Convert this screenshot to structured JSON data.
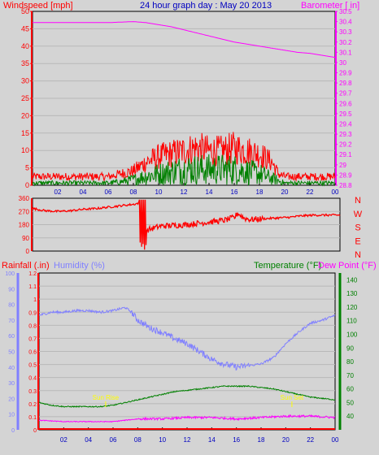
{
  "colors": {
    "background": "#d4d4d4",
    "plot_bg": "#d4d4d4",
    "frame": "#000000",
    "grid": "#b8b8b8",
    "wind": "#ff0000",
    "gust": "#ff0000",
    "avg_wind": "#008000",
    "barometer": "#ff00ff",
    "direction": "#ff0000",
    "rain": "#ff0000",
    "humidity": "#8080ff",
    "temperature": "#008000",
    "dewpoint": "#ff00ff",
    "title": "#0000c0",
    "sun_label": "#ffff00"
  },
  "header": {
    "title": "24 hour graph day : May 20 2013"
  },
  "chart_data": [
    {
      "type": "line",
      "id": "wind_baro",
      "ylabel_left": "Windspeed [mph]",
      "ylabel_right": "Barometer [ in]",
      "x_ticks": [
        "02",
        "04",
        "06",
        "08",
        "10",
        "12",
        "14",
        "16",
        "18",
        "20",
        "22",
        "00"
      ],
      "ylim_left": [
        0,
        50
      ],
      "yticks_left": [
        "0",
        "5",
        "10",
        "15",
        "20",
        "25",
        "30",
        "35",
        "40",
        "45",
        "50"
      ],
      "ylim_right": [
        28.8,
        30.5
      ],
      "yticks_right": [
        "28.8",
        "28.9",
        "29",
        "29.1",
        "29.2",
        "29.3",
        "29.4",
        "29.5",
        "29.6",
        "29.7",
        "29.8",
        "29.9",
        "30",
        "30.1",
        "30.2",
        "30.3",
        "30.4",
        "30.5"
      ],
      "series": [
        {
          "key": "barometer",
          "axis": "right",
          "x": [
            0,
            2,
            4,
            6,
            8,
            9,
            10,
            11,
            12,
            13,
            14,
            15,
            16,
            17,
            18,
            19,
            20,
            21,
            22,
            23,
            24
          ],
          "y": [
            30.39,
            30.39,
            30.39,
            30.39,
            30.4,
            30.39,
            30.37,
            30.35,
            30.32,
            30.29,
            30.26,
            30.23,
            30.2,
            30.18,
            30.16,
            30.14,
            30.12,
            30.1,
            30.09,
            30.07,
            30.05
          ]
        },
        {
          "key": "gust_envelope",
          "axis": "left",
          "x": [
            0,
            2,
            4,
            6,
            7,
            8,
            9,
            10,
            11,
            12,
            13,
            14,
            15,
            16,
            17,
            18,
            19,
            19.5,
            20,
            21,
            22,
            23,
            24
          ],
          "y": [
            3,
            3,
            3,
            3,
            4,
            5,
            8,
            10,
            11,
            12,
            13,
            12,
            12,
            13,
            12,
            11,
            8,
            4,
            3,
            3,
            3,
            3,
            3
          ]
        },
        {
          "key": "avg_envelope",
          "axis": "left",
          "x": [
            0,
            2,
            4,
            6,
            7,
            8,
            9,
            10,
            11,
            12,
            13,
            14,
            15,
            16,
            17,
            18,
            19,
            20,
            22,
            24
          ],
          "y": [
            1,
            1,
            1,
            1,
            1.5,
            2.5,
            4,
            5,
            6,
            7,
            7,
            7,
            7,
            7,
            6,
            5,
            3,
            1,
            1,
            1
          ]
        }
      ]
    },
    {
      "type": "line",
      "id": "direction",
      "ylabel_right_letters": [
        "N",
        "W",
        "S",
        "E",
        "N"
      ],
      "ylim": [
        0,
        360
      ],
      "yticks": [
        "0",
        "90",
        "180",
        "270",
        "360"
      ],
      "series": [
        {
          "key": "direction",
          "x": [
            0,
            1,
            2,
            3,
            4,
            5,
            6,
            7,
            8,
            8.4,
            8.8,
            9.2,
            9.6,
            10,
            11,
            12,
            13,
            14,
            15,
            15.8,
            16,
            16.5,
            17,
            18,
            19,
            20,
            21,
            22,
            23,
            24
          ],
          "y": [
            290,
            275,
            270,
            275,
            285,
            290,
            300,
            310,
            320,
            330,
            140,
            150,
            160,
            170,
            175,
            180,
            190,
            200,
            210,
            230,
            260,
            225,
            215,
            220,
            225,
            230,
            240,
            245,
            245,
            245
          ]
        }
      ]
    },
    {
      "type": "line",
      "id": "rain_hum_temp",
      "ylabel_left_1": "Rainfall (.in)",
      "ylabel_left_2": "Humidity (%)",
      "ylabel_right_1": "Temperature (°F)",
      "ylabel_right_2": "Dew Point (°F)",
      "ylim_rain": [
        0,
        1.2
      ],
      "yticks_rain": [
        "0",
        "0.1",
        "0.2",
        "0.3",
        "0.4",
        "0.5",
        "0.6",
        "0.7",
        "0.8",
        "0.9",
        "1",
        "1.1",
        "1.2"
      ],
      "ylim_hum": [
        0,
        100
      ],
      "yticks_hum": [
        "0",
        "10",
        "20",
        "30",
        "40",
        "50",
        "60",
        "70",
        "80",
        "90",
        "100"
      ],
      "ylim_temp": [
        30,
        145
      ],
      "yticks_temp": [
        "40",
        "50",
        "60",
        "70",
        "80",
        "90",
        "100",
        "110",
        "120",
        "130",
        "140"
      ],
      "sunrise": {
        "label": "Sun Rise",
        "x": 5.4
      },
      "sunset": {
        "label": "Sun Set",
        "x": 20.5
      },
      "series": [
        {
          "key": "rain",
          "axis": "rain",
          "x": [
            0,
            24
          ],
          "y": [
            0,
            0
          ]
        },
        {
          "key": "humidity",
          "axis": "hum",
          "x": [
            0,
            1,
            2,
            3,
            4,
            5,
            6,
            7,
            7.5,
            8,
            9,
            10,
            11,
            12,
            13,
            14,
            15,
            16,
            17,
            18,
            19,
            20,
            21,
            22,
            23,
            24
          ],
          "y": [
            73,
            75,
            75,
            76,
            76,
            75,
            76,
            78,
            75,
            70,
            65,
            62,
            58,
            55,
            50,
            45,
            42,
            40,
            41,
            42,
            46,
            55,
            62,
            68,
            70,
            73
          ]
        },
        {
          "key": "temperature",
          "axis": "temp",
          "x": [
            0,
            1,
            2,
            3,
            4,
            5,
            6,
            7,
            8,
            9,
            10,
            11,
            12,
            13,
            14,
            15,
            16,
            17,
            18,
            19,
            20,
            21,
            22,
            23,
            24
          ],
          "y": [
            50,
            48,
            47,
            47,
            47,
            47,
            48,
            50,
            52,
            54,
            56,
            58,
            59,
            60,
            61,
            62,
            62,
            62,
            61,
            60,
            58,
            56,
            54,
            53,
            52
          ]
        },
        {
          "key": "dewpoint",
          "axis": "temp",
          "x": [
            0,
            2,
            4,
            6,
            8,
            10,
            12,
            14,
            16,
            18,
            20,
            22,
            24
          ],
          "y": [
            37,
            36,
            36,
            36,
            38,
            38,
            39,
            39,
            38,
            39,
            40,
            40,
            39
          ]
        }
      ]
    }
  ]
}
